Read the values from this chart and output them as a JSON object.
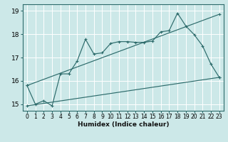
{
  "xlabel": "Humidex (Indice chaleur)",
  "bg_color": "#cce8e8",
  "line_color": "#2d6b6b",
  "grid_color": "#ffffff",
  "ylim": [
    14.72,
    19.28
  ],
  "xlim": [
    -0.5,
    23.5
  ],
  "yticks": [
    15,
    16,
    17,
    18,
    19
  ],
  "xticks": [
    0,
    1,
    2,
    3,
    4,
    5,
    6,
    7,
    8,
    9,
    10,
    11,
    12,
    13,
    14,
    15,
    16,
    17,
    18,
    19,
    20,
    21,
    22,
    23
  ],
  "line1_x": [
    0,
    1,
    2,
    3,
    4,
    5,
    6,
    7,
    8,
    9,
    10,
    11,
    12,
    13,
    14,
    15,
    16,
    17,
    18,
    19,
    20,
    21,
    22,
    23
  ],
  "line1_y": [
    15.8,
    15.0,
    15.15,
    14.93,
    16.3,
    16.3,
    16.85,
    17.78,
    17.15,
    17.2,
    17.6,
    17.68,
    17.68,
    17.65,
    17.65,
    17.7,
    18.1,
    18.15,
    18.9,
    18.35,
    17.98,
    17.5,
    16.72,
    16.15
  ],
  "line2_x": [
    0,
    23
  ],
  "line2_y": [
    15.8,
    18.85
  ],
  "line3_x": [
    0,
    23
  ],
  "line3_y": [
    14.93,
    16.15
  ]
}
